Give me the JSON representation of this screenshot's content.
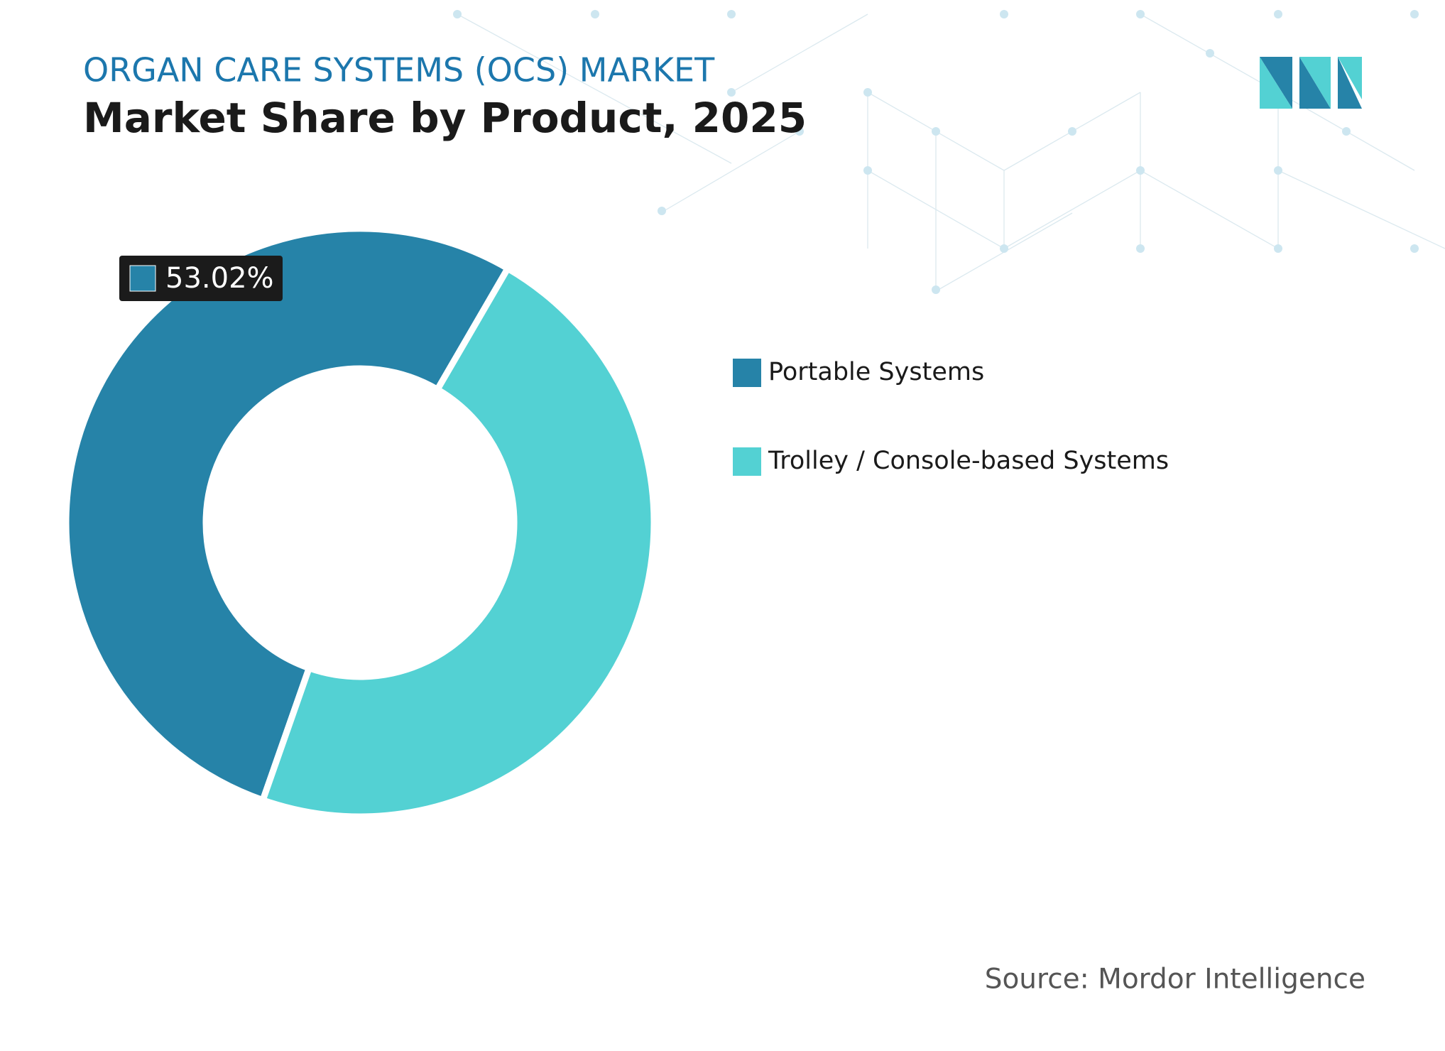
{
  "chart_data": {
    "type": "donut",
    "supertitle": "ORGAN CARE SYSTEMS (OCS) MARKET",
    "title": "Market Share by Product, 2025",
    "categories": [
      "Portable Systems",
      "Trolley / Console-based Systems"
    ],
    "values": [
      53.02,
      46.98
    ],
    "value_labels": [
      "53.02%",
      null
    ],
    "colors": [
      "#2683a8",
      "#53d1d3"
    ],
    "source": "Source: Mordor Intelligence"
  }
}
